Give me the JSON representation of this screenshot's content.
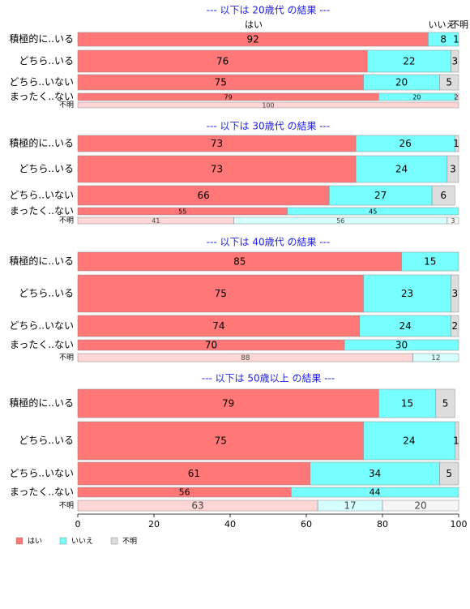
{
  "chart_data": {
    "type": "bar",
    "series": [
      {
        "name": "はい",
        "color": "#ff7777"
      },
      {
        "name": "いいえ",
        "color": "#77ffff"
      },
      {
        "name": "不明",
        "color": "#dddddd"
      }
    ],
    "xlim": [
      0,
      100
    ],
    "xticks": [
      0,
      20,
      40,
      60,
      80,
      100
    ],
    "panels": [
      {
        "title": "--- 以下は 20歳代 の結果 ---",
        "categories": [
          "積極的に..いる",
          "どちら..いる",
          "どちら..いない",
          "まったく..ない",
          "不明"
        ],
        "series": [
          {
            "values": [
              92,
              76,
              75,
              79,
              100
            ]
          },
          {
            "values": [
              8,
              22,
              20,
              20,
              null
            ]
          },
          {
            "values": [
              1,
              3,
              5,
              2,
              null
            ]
          }
        ]
      },
      {
        "title": "--- 以下は 30歳代 の結果 ---",
        "categories": [
          "積極的に..いる",
          "どちら..いる",
          "どちら..いない",
          "まったく..ない",
          "不明"
        ],
        "series": [
          {
            "values": [
              73,
              73,
              66,
              55,
              41
            ]
          },
          {
            "values": [
              26,
              24,
              27,
              45,
              56
            ]
          },
          {
            "values": [
              1,
              3,
              6,
              null,
              3
            ]
          }
        ]
      },
      {
        "title": "--- 以下は 40歳代 の結果 ---",
        "categories": [
          "積極的に..いる",
          "どちら..いる",
          "どちら..いない",
          "まったく..ない",
          "不明"
        ],
        "series": [
          {
            "values": [
              85,
              75,
              74,
              70,
              88
            ]
          },
          {
            "values": [
              15,
              23,
              24,
              30,
              12
            ]
          },
          {
            "values": [
              null,
              3,
              2,
              null,
              null
            ]
          }
        ]
      },
      {
        "title": "--- 以下は 50歳以上 の結果 ---",
        "categories": [
          "積極的に..いる",
          "どちら..いる",
          "どちら..いない",
          "まったく..ない",
          "不明"
        ],
        "series": [
          {
            "values": [
              79,
              75,
              61,
              56,
              63
            ]
          },
          {
            "values": [
              15,
              24,
              34,
              44,
              17
            ]
          },
          {
            "values": [
              5,
              1,
              5,
              null,
              20
            ]
          }
        ]
      }
    ]
  }
}
